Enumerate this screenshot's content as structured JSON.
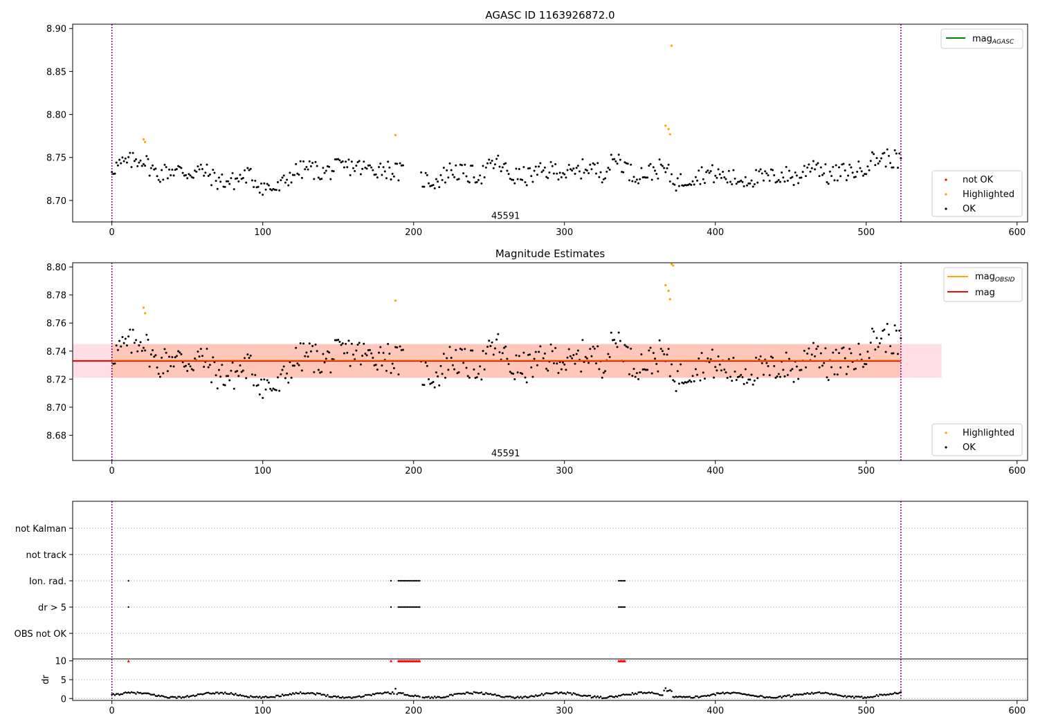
{
  "chart_data": [
    {
      "type": "scatter",
      "title": "AGASC ID 1163926872.0",
      "xlim": [
        -26,
        607
      ],
      "ylim": [
        8.675,
        8.905
      ],
      "xticks": [
        0,
        100,
        200,
        300,
        400,
        500,
        600
      ],
      "yticks": [
        "8.70",
        "8.75",
        "8.80",
        "8.85",
        "8.90"
      ],
      "vlines": [
        0,
        523
      ],
      "annotation": {
        "text": "45591",
        "x": 261,
        "y": 8.682
      },
      "legend_lines": {
        "mag_label": "mag",
        "mag_sub": "AGASC",
        "color": "#008000"
      },
      "legend_points": [
        "not OK",
        "Highlighted",
        "OK"
      ],
      "highlighted": [
        [
          21,
          8.771
        ],
        [
          22,
          8.768
        ],
        [
          188,
          8.776
        ],
        [
          367,
          8.787
        ],
        [
          369,
          8.783
        ],
        [
          370,
          8.777
        ],
        [
          371,
          8.88
        ]
      ],
      "series_ok_trend": [
        [
          0,
          8.738
        ],
        [
          10,
          8.744
        ],
        [
          20,
          8.749
        ],
        [
          30,
          8.73
        ],
        [
          40,
          8.736
        ],
        [
          50,
          8.732
        ],
        [
          60,
          8.735
        ],
        [
          70,
          8.723
        ],
        [
          80,
          8.722
        ],
        [
          90,
          8.73
        ],
        [
          100,
          8.716
        ],
        [
          110,
          8.713
        ],
        [
          120,
          8.732
        ],
        [
          130,
          8.738
        ],
        [
          140,
          8.732
        ],
        [
          150,
          8.738
        ],
        [
          160,
          8.74
        ],
        [
          170,
          8.736
        ],
        [
          180,
          8.738
        ],
        [
          185,
          8.735
        ],
        [
          193,
          8.732
        ],
        [
          205,
          8.725
        ],
        [
          215,
          8.722
        ],
        [
          225,
          8.736
        ],
        [
          235,
          8.73
        ],
        [
          245,
          8.73
        ],
        [
          255,
          8.745
        ],
        [
          265,
          8.728
        ],
        [
          275,
          8.728
        ],
        [
          285,
          8.733
        ],
        [
          295,
          8.736
        ],
        [
          305,
          8.73
        ],
        [
          315,
          8.74
        ],
        [
          325,
          8.732
        ],
        [
          335,
          8.75
        ],
        [
          345,
          8.73
        ],
        [
          355,
          8.732
        ],
        [
          365,
          8.738
        ],
        [
          375,
          8.72
        ],
        [
          385,
          8.728
        ],
        [
          395,
          8.732
        ],
        [
          405,
          8.728
        ],
        [
          415,
          8.724
        ],
        [
          425,
          8.726
        ],
        [
          435,
          8.726
        ],
        [
          445,
          8.73
        ],
        [
          455,
          8.726
        ],
        [
          465,
          8.745
        ],
        [
          475,
          8.728
        ],
        [
          485,
          8.733
        ],
        [
          495,
          8.735
        ],
        [
          505,
          8.748
        ],
        [
          515,
          8.75
        ],
        [
          523,
          8.745
        ]
      ],
      "gap": [
        193,
        205
      ]
    },
    {
      "type": "scatter",
      "title": "Magnitude Estimates",
      "xlim": [
        -26,
        607
      ],
      "ylim": [
        8.662,
        8.803
      ],
      "xticks": [
        0,
        100,
        200,
        300,
        400,
        500,
        600
      ],
      "yticks": [
        "8.68",
        "8.70",
        "8.72",
        "8.74",
        "8.76",
        "8.78",
        "8.80"
      ],
      "vlines": [
        0,
        523
      ],
      "mag": 8.733,
      "band_outer": [
        8.721,
        8.745
      ],
      "band_inner": [
        8.721,
        8.745
      ],
      "band_outer_x": [
        -26,
        550
      ],
      "band_inner_x": [
        0,
        523
      ],
      "annotation": {
        "text": "45591",
        "x": 261,
        "y": 8.667
      },
      "legend_lines": {
        "obsid_label": "mag",
        "obsid_sub": "OBSID",
        "mag_label": "mag",
        "obsid_color": "#ffa500",
        "mag_color": "#ff0000"
      },
      "legend_points": [
        "Highlighted",
        "OK"
      ],
      "highlighted": [
        [
          21,
          8.771
        ],
        [
          22,
          8.767
        ],
        [
          188,
          8.776
        ],
        [
          367,
          8.787
        ],
        [
          369,
          8.783
        ],
        [
          370,
          8.777
        ],
        [
          371,
          8.802
        ],
        [
          372,
          8.801
        ]
      ]
    },
    {
      "type": "scatter",
      "xlim": [
        -26,
        607
      ],
      "categories": [
        "not Kalman",
        "not track",
        "Ion. rad.",
        "dr > 5",
        "OBS not OK"
      ],
      "vlines": [
        0,
        523
      ],
      "ion_rad_x": [
        11,
        185,
        190,
        191,
        192,
        193,
        194,
        195,
        196,
        197,
        198,
        199,
        200,
        201,
        202,
        203,
        204,
        336,
        337,
        338,
        339,
        340
      ],
      "dr_gt5_x": [
        11,
        185,
        190,
        191,
        192,
        193,
        194,
        195,
        196,
        197,
        198,
        199,
        200,
        201,
        202,
        203,
        204,
        336,
        337,
        338,
        339,
        340
      ]
    },
    {
      "type": "scatter",
      "ylabel": "dr",
      "xlim": [
        -26,
        607
      ],
      "ylim": [
        -0.5,
        10.5
      ],
      "xticks": [
        0,
        100,
        200,
        300,
        400,
        500,
        600
      ],
      "yticks": [
        "0",
        "5",
        "10"
      ],
      "vlines": [
        0,
        523
      ],
      "clipped_x": [
        11,
        185,
        190,
        191,
        192,
        193,
        194,
        195,
        196,
        197,
        198,
        199,
        200,
        201,
        202,
        203,
        204,
        336,
        337,
        338,
        339,
        340
      ],
      "clipped_value": 10
    }
  ]
}
